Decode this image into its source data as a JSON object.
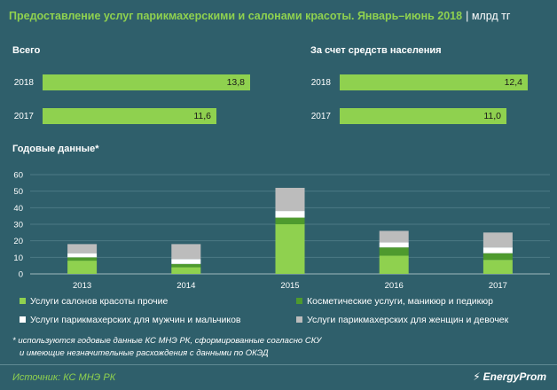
{
  "header": {
    "title": "Предоставление  услуг  парикмахерскими  и салонами  красоты.  Январь–июнь  2018",
    "unit": "| млрд тг"
  },
  "panels": [
    {
      "title": "Всего",
      "bars": [
        {
          "year": "2018",
          "value": 13.8,
          "label": "13,8"
        },
        {
          "year": "2017",
          "value": 11.6,
          "label": "11,6"
        }
      ]
    },
    {
      "title": "За счет средств населения",
      "bars": [
        {
          "year": "2018",
          "value": 12.4,
          "label": "12,4"
        },
        {
          "year": "2017",
          "value": 11.0,
          "label": "11,0"
        }
      ]
    }
  ],
  "annual": {
    "title": "Годовые данные*"
  },
  "chart_data": [
    {
      "type": "bar",
      "orientation": "horizontal",
      "title": "Всего",
      "categories": [
        "2018",
        "2017"
      ],
      "values": [
        13.8,
        11.6
      ]
    },
    {
      "type": "bar",
      "orientation": "horizontal",
      "title": "За счет средств населения",
      "categories": [
        "2018",
        "2017"
      ],
      "values": [
        12.4,
        11.0
      ]
    },
    {
      "type": "bar",
      "stacked": true,
      "title": "Годовые данные*",
      "categories": [
        "2013",
        "2014",
        "2015",
        "2016",
        "2017"
      ],
      "ylim": [
        0,
        60
      ],
      "yticks": [
        "0",
        "10",
        "20",
        "30",
        "40",
        "50",
        "60"
      ],
      "grid": true,
      "legend": "bottom",
      "series": [
        {
          "name": "Услуги  салонов красоты прочие",
          "color": "#8fd14f",
          "values": [
            8,
            4,
            30,
            11,
            8.5
          ]
        },
        {
          "name": "Косметические услуги, маникюр и педикюр",
          "color": "#4e9a2e",
          "values": [
            2,
            2,
            4,
            5,
            4
          ]
        },
        {
          "name": "Услуги  парикмахерских для мужчин и  мальчиков",
          "color": "#ffffff",
          "values": [
            2.5,
            3,
            4,
            3,
            3.5
          ]
        },
        {
          "name": "Услуги  парикмахерских для женщин и девочек",
          "color": "#bcbcbc",
          "values": [
            5.5,
            9,
            14,
            7,
            9
          ]
        }
      ]
    }
  ],
  "footnote": {
    "line1": "*  используются годовые данные КС МНЭ РК, сформированные согласно СКУ",
    "line2": "и имеющие незначительные расхождения с данными по ОКЭД"
  },
  "footer": {
    "source": "Источник: КС МНЭ РК",
    "brand": "EnergyProm"
  }
}
